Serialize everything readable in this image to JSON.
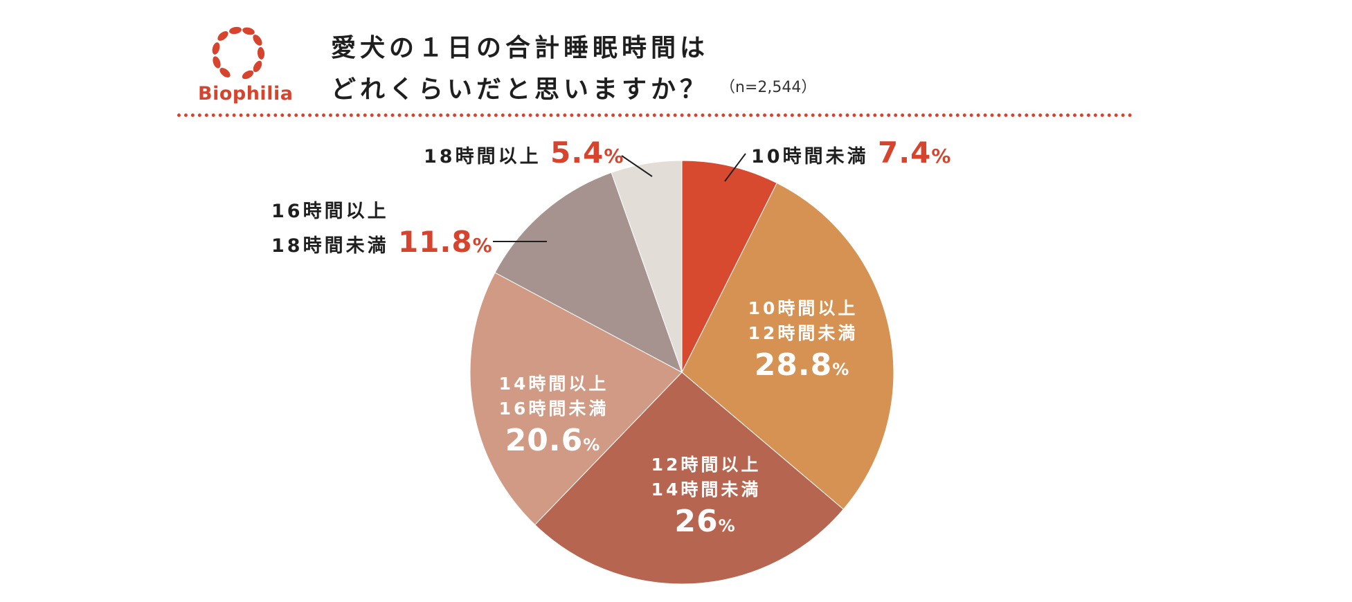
{
  "header": {
    "brand": "Biophilia",
    "title_line1": "愛犬の１日の合計睡眠時間は",
    "title_line2": "どれくらいだと思いますか？",
    "sample_size": "（n=2,544）"
  },
  "colors": {
    "accent": "#d7442e",
    "lt10": "#d84a30",
    "h10_12": "#d69252",
    "h12_14": "#b66550",
    "h14_16": "#d09a84",
    "h16_18": "#a69390",
    "ge18": "#e2ddd7"
  },
  "chart_data": {
    "type": "pie",
    "title": "愛犬の１日の合計睡眠時間はどれくらいだと思いますか？",
    "unit": "%",
    "percent_sign": "%",
    "slices": [
      {
        "label_line1": "10時間未満",
        "label_line2": "",
        "value": 7.4,
        "value_text": "7.4",
        "color": "#d84a30"
      },
      {
        "label_line1": "10時間以上",
        "label_line2": "12時間未満",
        "value": 28.8,
        "value_text": "28.8",
        "color": "#d69252"
      },
      {
        "label_line1": "12時間以上",
        "label_line2": "14時間未満",
        "value": 26,
        "value_text": "26",
        "color": "#b66550"
      },
      {
        "label_line1": "14時間以上",
        "label_line2": "16時間未満",
        "value": 20.6,
        "value_text": "20.6",
        "color": "#d09a84"
      },
      {
        "label_line1": "16時間以上",
        "label_line2": "18時間未満",
        "value": 11.8,
        "value_text": "11.8",
        "color": "#a69390"
      },
      {
        "label_line1": "18時間以上",
        "label_line2": "",
        "value": 5.4,
        "value_text": "5.4",
        "color": "#e2ddd7"
      }
    ]
  }
}
